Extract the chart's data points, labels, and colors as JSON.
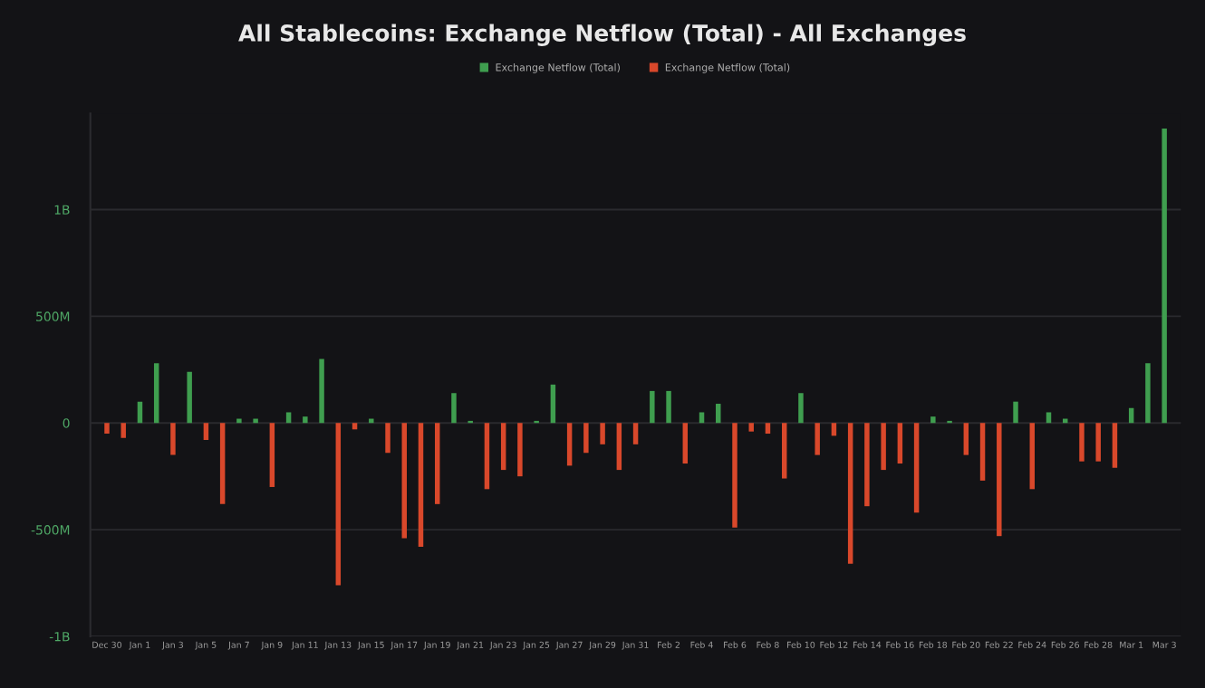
{
  "chart_data": {
    "type": "bar",
    "title": "All Stablecoins: Exchange Netflow (Total) - All Exchanges",
    "categories": [
      "Dec 30",
      null,
      "Jan 1",
      null,
      "Jan 3",
      null,
      "Jan 5",
      null,
      "Jan 7",
      null,
      "Jan 9",
      null,
      "Jan 11",
      null,
      "Jan 13",
      null,
      "Jan 15",
      null,
      "Jan 17",
      null,
      "Jan 19",
      null,
      "Jan 21",
      null,
      "Jan 23",
      null,
      "Jan 25",
      null,
      "Jan 27",
      null,
      "Jan 29",
      null,
      "Jan 31",
      null,
      "Feb 2",
      null,
      "Feb 4",
      null,
      "Feb 6",
      null,
      "Feb 8",
      null,
      "Feb 10",
      null,
      "Feb 12",
      null,
      "Feb 14",
      null,
      "Feb 16",
      null,
      "Feb 18",
      null,
      "Feb 20",
      null,
      "Feb 22",
      null,
      "Feb 24",
      null,
      "Feb 26",
      null,
      "Feb 28",
      null,
      "Mar 1",
      null,
      "Mar 3"
    ],
    "series": [
      {
        "name": "Exchange Netflow (Total)",
        "color": "#3f9e4f",
        "values": [
          null,
          null,
          100000000,
          280000000,
          null,
          240000000,
          null,
          null,
          20000000,
          20000000,
          null,
          50000000,
          30000000,
          300000000,
          null,
          null,
          20000000,
          null,
          null,
          null,
          null,
          140000000,
          10000000,
          null,
          null,
          null,
          10000000,
          180000000,
          null,
          null,
          null,
          null,
          null,
          150000000,
          150000000,
          null,
          50000000,
          90000000,
          null,
          null,
          null,
          null,
          140000000,
          null,
          null,
          null,
          null,
          null,
          null,
          null,
          30000000,
          10000000,
          null,
          null,
          null,
          100000000,
          null,
          50000000,
          20000000,
          null,
          null,
          null,
          70000000,
          280000000,
          1380000000
        ]
      },
      {
        "name": "Exchange Netflow (Total)",
        "color": "#d9482b",
        "values": [
          -50000000,
          -70000000,
          null,
          null,
          -150000000,
          null,
          -80000000,
          -380000000,
          null,
          null,
          -300000000,
          null,
          null,
          null,
          -760000000,
          -30000000,
          null,
          -140000000,
          -540000000,
          -580000000,
          -380000000,
          null,
          null,
          -310000000,
          -220000000,
          -250000000,
          null,
          null,
          -200000000,
          -140000000,
          -100000000,
          -220000000,
          -100000000,
          null,
          null,
          -190000000,
          null,
          null,
          -490000000,
          -40000000,
          -50000000,
          -260000000,
          null,
          -150000000,
          -60000000,
          -660000000,
          -390000000,
          -220000000,
          -190000000,
          -420000000,
          null,
          null,
          -150000000,
          -270000000,
          -530000000,
          null,
          -310000000,
          null,
          null,
          -180000000,
          -180000000,
          -210000000,
          null,
          null,
          null
        ]
      }
    ],
    "ylim": [
      -1000000000,
      1450000000
    ],
    "yticks": [
      {
        "value": -1000000000,
        "label": "-1B"
      },
      {
        "value": -500000000,
        "label": "-500M"
      },
      0,
      {
        "value": 500000000,
        "label": "500M"
      },
      {
        "value": 1000000000,
        "label": "1B"
      }
    ],
    "grid": "y",
    "legend": "top"
  }
}
